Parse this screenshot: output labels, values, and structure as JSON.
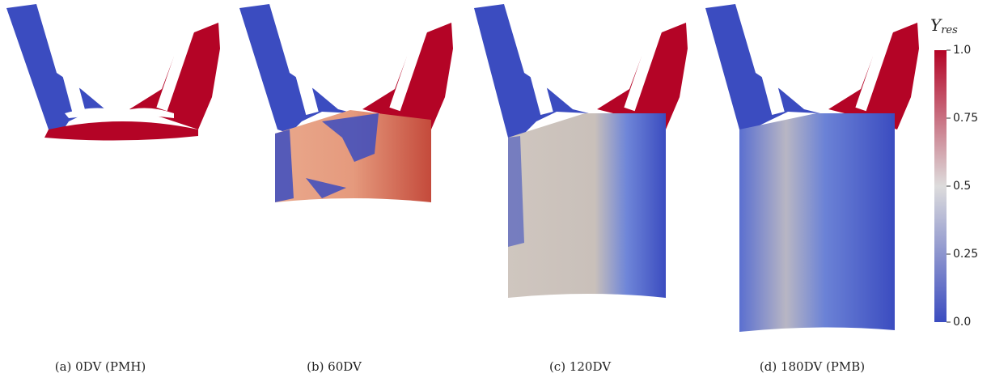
{
  "panels": [
    {
      "caption": "(a) 0DV (PMH)"
    },
    {
      "caption": "(b) 60DV"
    },
    {
      "caption": "(c) 120DV"
    },
    {
      "caption": "(d) 180DV (PMB)"
    }
  ],
  "colorbar": {
    "label": "Y",
    "label_subscript": "res",
    "range": [
      0,
      1
    ],
    "ticks": [
      {
        "value": 1,
        "label": "1.0"
      },
      0.75,
      0.5,
      0.25,
      {
        "value": 0,
        "label": "0.0"
      }
    ],
    "colormap": [
      "#3b4cc0",
      "#dddcdc",
      "#b40426"
    ]
  }
}
